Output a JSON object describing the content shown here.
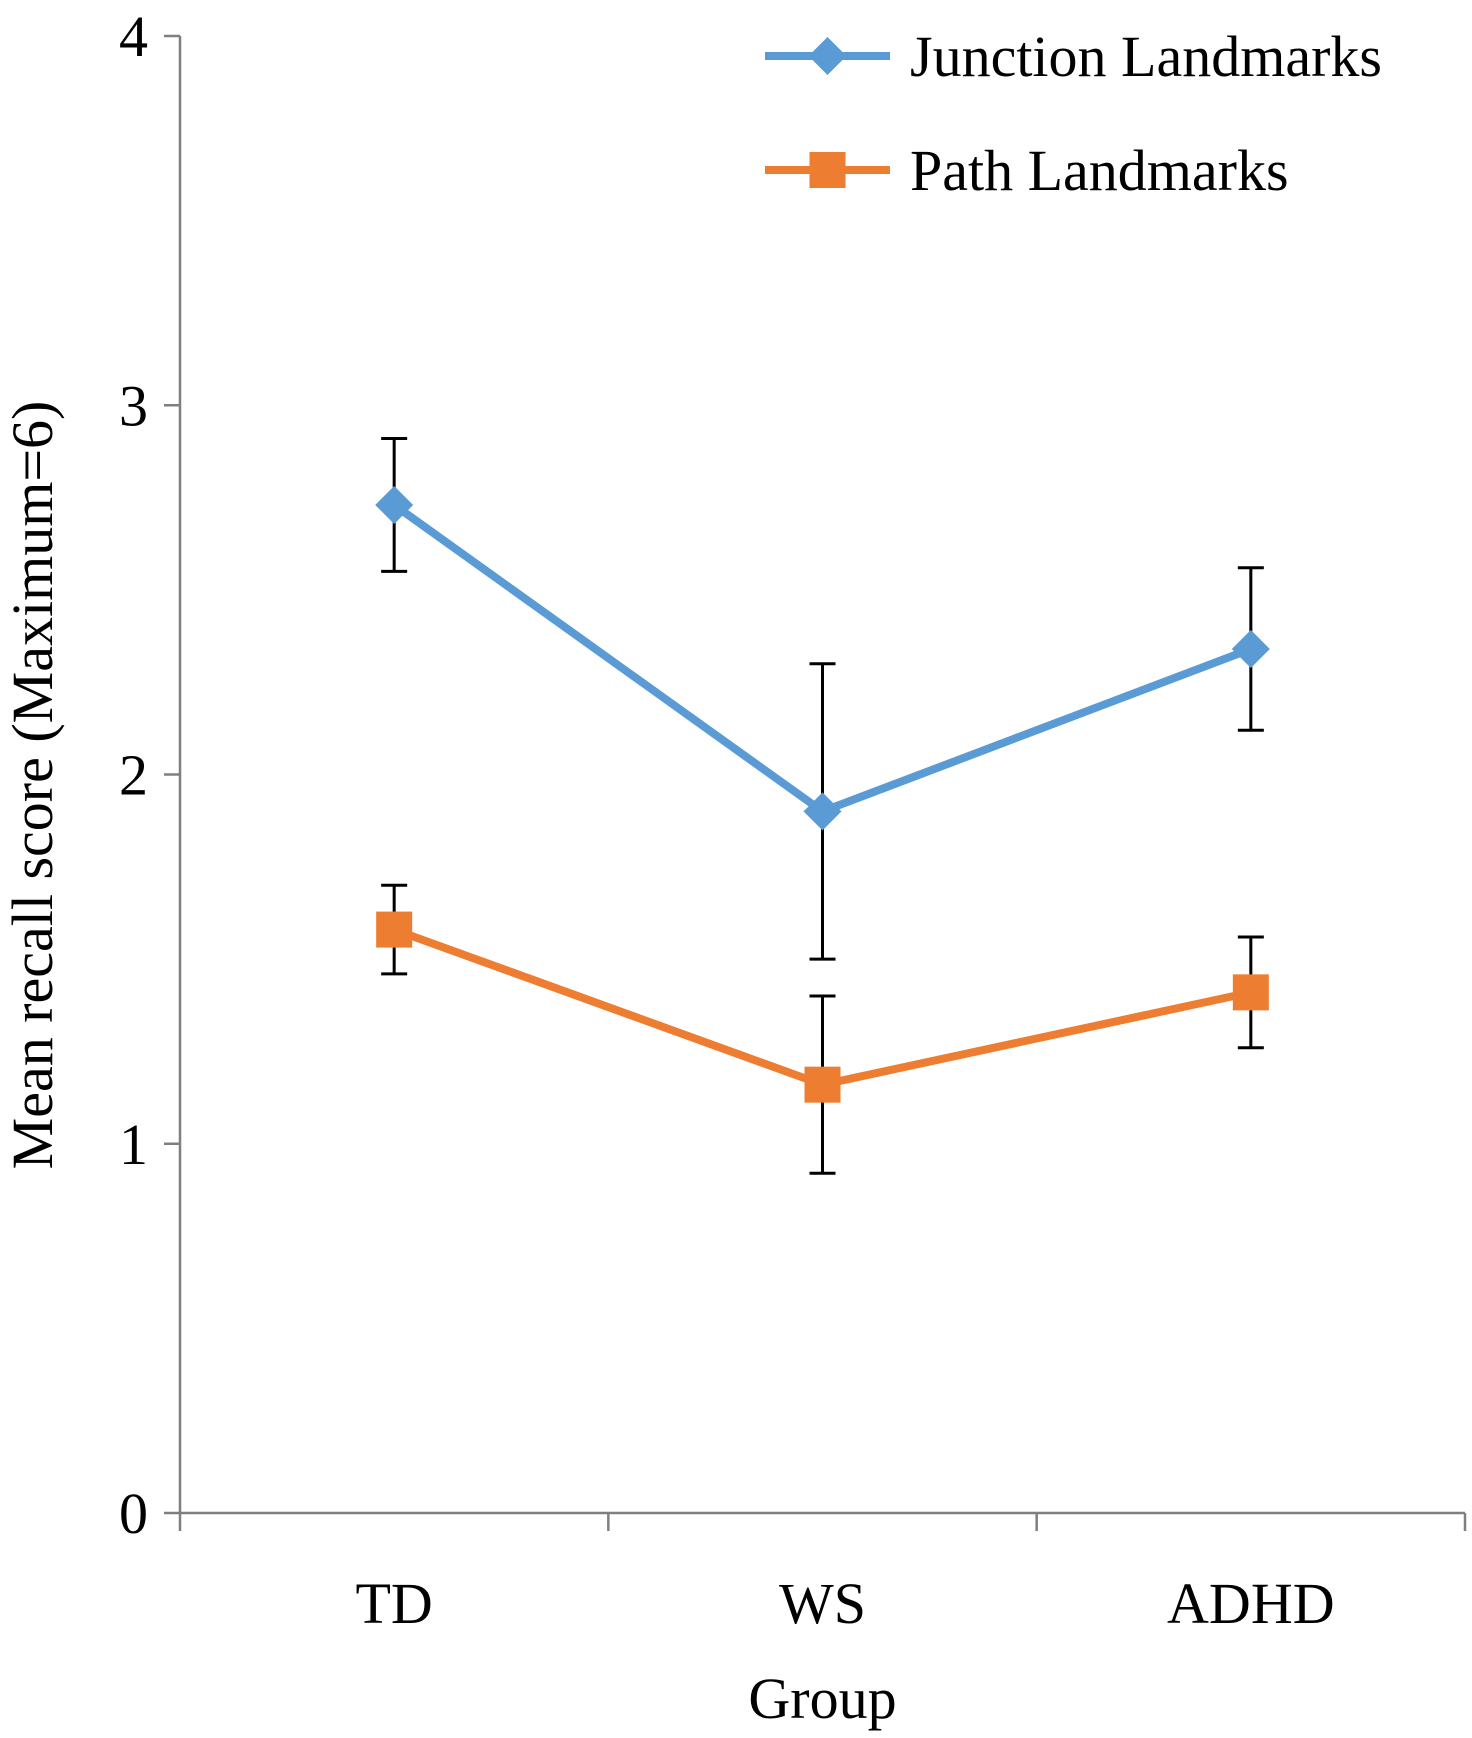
{
  "chart_data": {
    "type": "line",
    "title": "",
    "xlabel": "Group",
    "ylabel": "Mean recall score (Maximum=6)",
    "categories": [
      "TD",
      "WS",
      "ADHD"
    ],
    "ylim": [
      0,
      4
    ],
    "yticks": [
      "0",
      "1",
      "2",
      "3",
      "4"
    ],
    "grid": false,
    "legend_position": "top-right",
    "series": [
      {
        "name": "Junction Landmarks",
        "color": "#5B9BD5",
        "marker": "diamond",
        "values": [
          2.73,
          1.9,
          2.34
        ],
        "error": [
          0.18,
          0.4,
          0.22
        ]
      },
      {
        "name": "Path Landmarks",
        "color": "#ED7D31",
        "marker": "square",
        "values": [
          1.58,
          1.16,
          1.41
        ],
        "error": [
          0.12,
          0.24,
          0.15
        ]
      }
    ]
  }
}
